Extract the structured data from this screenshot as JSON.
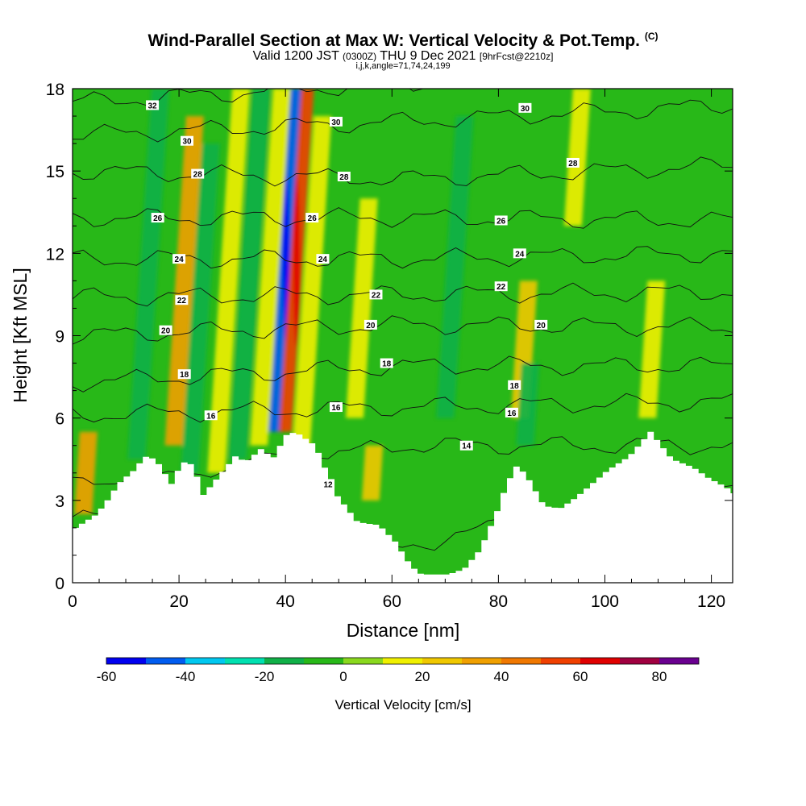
{
  "header": {
    "title": "Wind-Parallel Section at Max W: Vertical Velocity & Pot.Temp.",
    "title_mark": "(C)",
    "valid_prefix": "Valid 1200 JST",
    "valid_utc": "(0300Z)",
    "valid_date": "THU 9 Dec 2021",
    "forecast": "[9hrFcst@2210z]",
    "indices": "i,j,k,angle=71,74,24,199"
  },
  "chart_data": {
    "type": "heatmap",
    "xlabel": "Distance [nm]",
    "ylabel": "Height [Kft MSL]",
    "xlim": [
      0,
      124
    ],
    "ylim": [
      0,
      18
    ],
    "x_ticks": [
      0,
      20,
      40,
      60,
      80,
      100,
      120
    ],
    "y_ticks": [
      0,
      3,
      6,
      9,
      12,
      15,
      18
    ],
    "colorbar": {
      "label": "Vertical Velocity [cm/s]",
      "levels": [
        -60,
        -50,
        -40,
        -30,
        -20,
        -10,
        0,
        10,
        20,
        30,
        40,
        50,
        60,
        70,
        80,
        90
      ],
      "tick_values": [
        -60,
        -40,
        -20,
        0,
        20,
        40,
        60,
        80
      ],
      "colors": [
        "#0000f0",
        "#005cf0",
        "#00c8f0",
        "#00e0b0",
        "#10b048",
        "#28b818",
        "#8ad81e",
        "#f0f000",
        "#f0c800",
        "#f0a000",
        "#f07800",
        "#f04000",
        "#e00000",
        "#a00040",
        "#6a0090"
      ]
    },
    "velocity_features": [
      {
        "x": 2,
        "z_min": 2.5,
        "z_max": 5.5,
        "w": 35
      },
      {
        "x": 12,
        "z_min": 4.5,
        "z_max": 18,
        "w": -15
      },
      {
        "x": 19,
        "z_min": 5,
        "z_max": 17,
        "w": 30
      },
      {
        "x": 22,
        "z_min": 4,
        "z_max": 16,
        "w": -15
      },
      {
        "x": 27,
        "z_min": 4,
        "z_max": 18,
        "w": 15
      },
      {
        "x": 31,
        "z_min": 4.5,
        "z_max": 18,
        "w": -15
      },
      {
        "x": 35,
        "z_min": 5,
        "z_max": 18,
        "w": 15
      },
      {
        "x": 38,
        "z_min": 5.5,
        "z_max": 18,
        "w": -50
      },
      {
        "x": 40,
        "z_min": 5.5,
        "z_max": 18,
        "w": 55
      },
      {
        "x": 43,
        "z_min": 5,
        "z_max": 17,
        "w": 10
      },
      {
        "x": 53,
        "z_min": 6,
        "z_max": 14,
        "w": 15
      },
      {
        "x": 56,
        "z_min": 3,
        "z_max": 5,
        "w": 25
      },
      {
        "x": 70,
        "z_min": 6,
        "z_max": 17,
        "w": -15
      },
      {
        "x": 84,
        "z_min": 6,
        "z_max": 11,
        "w": 25
      },
      {
        "x": 85,
        "z_min": 5,
        "z_max": 8,
        "w": -15
      },
      {
        "x": 94,
        "z_min": 13,
        "z_max": 18,
        "w": 15
      },
      {
        "x": 108,
        "z_min": 6,
        "z_max": 11,
        "w": 15
      }
    ],
    "terrain_height_kft": [
      {
        "x": 0,
        "z": 2
      },
      {
        "x": 4,
        "z": 2.5
      },
      {
        "x": 6,
        "z": 3
      },
      {
        "x": 8,
        "z": 3.6
      },
      {
        "x": 11,
        "z": 4.1
      },
      {
        "x": 13,
        "z": 4.6
      },
      {
        "x": 15,
        "z": 4.5
      },
      {
        "x": 18,
        "z": 3.6
      },
      {
        "x": 20,
        "z": 4.4
      },
      {
        "x": 22,
        "z": 4.3
      },
      {
        "x": 24,
        "z": 3.2
      },
      {
        "x": 27,
        "z": 3.9
      },
      {
        "x": 30,
        "z": 4.6
      },
      {
        "x": 32,
        "z": 4.4
      },
      {
        "x": 35,
        "z": 4.9
      },
      {
        "x": 37,
        "z": 4.5
      },
      {
        "x": 39,
        "z": 5.2
      },
      {
        "x": 40,
        "z": 5.5
      },
      {
        "x": 42,
        "z": 5.4
      },
      {
        "x": 45,
        "z": 5
      },
      {
        "x": 47,
        "z": 4.1
      },
      {
        "x": 49,
        "z": 3.2
      },
      {
        "x": 53,
        "z": 2.2
      },
      {
        "x": 57,
        "z": 2.1
      },
      {
        "x": 60,
        "z": 1.5
      },
      {
        "x": 63,
        "z": 0.6
      },
      {
        "x": 65,
        "z": 0.3
      },
      {
        "x": 70,
        "z": 0.3
      },
      {
        "x": 73,
        "z": 0.5
      },
      {
        "x": 76,
        "z": 1.2
      },
      {
        "x": 79,
        "z": 2.5
      },
      {
        "x": 81,
        "z": 3.6
      },
      {
        "x": 83,
        "z": 4.3
      },
      {
        "x": 85,
        "z": 3.8
      },
      {
        "x": 88,
        "z": 2.8
      },
      {
        "x": 91,
        "z": 2.7
      },
      {
        "x": 94,
        "z": 3.1
      },
      {
        "x": 97,
        "z": 3.6
      },
      {
        "x": 100,
        "z": 4.1
      },
      {
        "x": 104,
        "z": 4.6
      },
      {
        "x": 108,
        "z": 5.5
      },
      {
        "x": 112,
        "z": 4.5
      },
      {
        "x": 116,
        "z": 4.2
      },
      {
        "x": 119,
        "z": 3.8
      },
      {
        "x": 122,
        "z": 3.5
      },
      {
        "x": 124,
        "z": 3.2
      }
    ],
    "isentropes": [
      {
        "value": 12,
        "z_left": 2.4,
        "z_mid": 1.3,
        "z_right": 3.8,
        "label_x": 48,
        "label_z": 3.6
      },
      {
        "value": 14,
        "z_left": 3.5,
        "z_mid": 5.0,
        "z_right": 5.0,
        "label_x": 74,
        "label_z": 5.0
      },
      {
        "value": 16,
        "z_left": 6.1,
        "z_mid": 6.4,
        "z_right": 6.6,
        "label_x": 26,
        "label_z": 6.1,
        "label2_x": 49.5,
        "label2_z": 6.4,
        "label3_x": 82.5,
        "label3_z": 6.2
      },
      {
        "value": 18,
        "z_left": 7.3,
        "z_mid": 7.9,
        "z_right": 7.9,
        "label_x": 21,
        "label_z": 7.6,
        "label2_x": 59,
        "label2_z": 8.0,
        "label3_x": 83,
        "label3_z": 7.2
      },
      {
        "value": 20,
        "z_left": 9.0,
        "z_mid": 9.4,
        "z_right": 9.3,
        "label_x": 17.5,
        "label_z": 9.2,
        "label2_x": 56,
        "label2_z": 9.4,
        "label3_x": 88,
        "label3_z": 9.4
      },
      {
        "value": 22,
        "z_left": 10.4,
        "z_mid": 10.5,
        "z_right": 10.6,
        "label_x": 20.5,
        "label_z": 10.3,
        "label2_x": 57,
        "label2_z": 10.5,
        "label3_x": 80.5,
        "label3_z": 10.8
      },
      {
        "value": 24,
        "z_left": 11.8,
        "z_mid": 11.8,
        "z_right": 12.0,
        "label_x": 20,
        "label_z": 11.8,
        "label2_x": 47,
        "label2_z": 11.8,
        "label3_x": 84,
        "label3_z": 12.0
      },
      {
        "value": 26,
        "z_left": 13.3,
        "z_mid": 13.3,
        "z_right": 13.2,
        "label_x": 16,
        "label_z": 13.3,
        "label2_x": 45,
        "label2_z": 13.3,
        "label3_x": 80.5,
        "label3_z": 13.2
      },
      {
        "value": 28,
        "z_left": 15.0,
        "z_mid": 14.7,
        "z_right": 15.2,
        "label_x": 23.5,
        "label_z": 14.9,
        "label2_x": 51,
        "label2_z": 14.8,
        "label3_x": 94,
        "label3_z": 15.3
      },
      {
        "value": 30,
        "z_left": 16.3,
        "z_mid": 16.8,
        "z_right": 17.4,
        "label_x": 21.5,
        "label_z": 16.1,
        "label2_x": 49.5,
        "label2_z": 16.8,
        "label3_x": 85,
        "label3_z": 17.3
      },
      {
        "value": 32,
        "z_left": 17.5,
        "z_mid": 18.2,
        "z_right": 18.6,
        "label_x": 15,
        "label_z": 17.4
      }
    ]
  }
}
